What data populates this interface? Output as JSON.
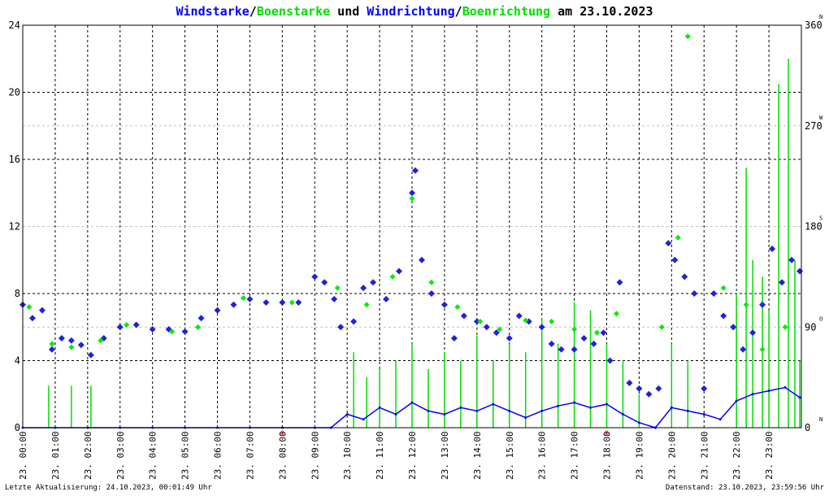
{
  "title": {
    "part1": "Windstarke",
    "sep1": "/",
    "part2": "Boenstarke",
    "part3": " und ",
    "part4": "Windrichtung",
    "sep2": "/",
    "part5": "Boenrichtung",
    "part6": " am 23.10.2023"
  },
  "footer": {
    "left": "Letzte Aktualisierung: 24.10.2023, 00:01:49 Uhr",
    "right": "Datenstand: 23.10.2023, 23:59:56 Uhr"
  },
  "colors": {
    "wind": "#0000ff",
    "gust": "#00dd00",
    "direction": "#2020e0",
    "gust_direction": "#00ee00",
    "marker": "#ff0000",
    "grid": "#000000",
    "text": "#000000"
  },
  "chart_data": {
    "type": "scatter",
    "xlim": [
      0,
      24
    ],
    "ylim": [
      0,
      24
    ],
    "y2lim": [
      0,
      360
    ],
    "yticks": [
      "0",
      "4",
      "8",
      "12",
      "16",
      "20",
      "24"
    ],
    "y2ticks": [
      {
        "value": "0",
        "dir": "N"
      },
      {
        "value": "90",
        "dir": "O"
      },
      {
        "value": "180",
        "dir": "S"
      },
      {
        "value": "270",
        "dir": "W"
      },
      {
        "value": "360",
        "dir": "N"
      }
    ],
    "xticks": [
      "23. 00:00",
      "23. 01:00",
      "23. 02:00",
      "23. 03:00",
      "23. 04:00",
      "23. 05:00",
      "23. 06:00",
      "23. 07:00",
      "23. 08:00",
      "23. 09:00",
      "23. 10:00",
      "23. 11:00",
      "23. 12:00",
      "23. 13:00",
      "23. 14:00",
      "23. 15:00",
      "23. 16:00",
      "23. 17:00",
      "23. 18:00",
      "23. 19:00",
      "23. 20:00",
      "23. 21:00",
      "23. 22:00",
      "23. 23:00"
    ],
    "red_markers": [
      {
        "x": 8.0,
        "label": "0"
      },
      {
        "x": 18.0,
        "label": "0"
      }
    ],
    "series": [
      {
        "name": "Windrichtung",
        "role": "direction",
        "axis": "right",
        "x": [
          0.0,
          0.3,
          0.6,
          0.9,
          1.2,
          1.5,
          1.8,
          2.1,
          2.5,
          3.0,
          3.5,
          4.0,
          4.5,
          5.0,
          5.5,
          6.0,
          6.5,
          7.0,
          7.5,
          8.0,
          8.5,
          9.0,
          9.3,
          9.6,
          9.8,
          10.2,
          10.5,
          10.8,
          11.2,
          11.6,
          12.0,
          12.1,
          12.3,
          12.6,
          13.0,
          13.3,
          13.6,
          14.0,
          14.3,
          14.6,
          15.0,
          15.3,
          15.6,
          16.0,
          16.3,
          16.6,
          17.0,
          17.3,
          17.6,
          17.9,
          18.1,
          18.4,
          18.7,
          19.0,
          19.3,
          19.6,
          19.9,
          20.1,
          20.4,
          20.7,
          21.0,
          21.3,
          21.6,
          21.9,
          22.2,
          22.5,
          22.8,
          23.1,
          23.4,
          23.7,
          23.95
        ],
        "values": [
          110,
          98,
          105,
          70,
          80,
          78,
          74,
          65,
          80,
          90,
          92,
          88,
          88,
          86,
          98,
          105,
          110,
          115,
          112,
          112,
          112,
          135,
          130,
          115,
          90,
          95,
          125,
          130,
          115,
          140,
          210,
          230,
          150,
          120,
          110,
          80,
          100,
          95,
          90,
          85,
          80,
          100,
          95,
          90,
          75,
          70,
          70,
          80,
          75,
          85,
          60,
          130,
          40,
          35,
          30,
          35,
          165,
          150,
          135,
          120,
          35,
          120,
          100,
          90,
          70,
          85,
          110,
          160,
          130,
          150,
          140
        ]
      },
      {
        "name": "Boenrichtung",
        "role": "gust_direction",
        "axis": "right",
        "x": [
          0.2,
          0.9,
          1.5,
          2.4,
          3.2,
          4.6,
          5.4,
          6.8,
          8.3,
          9.7,
          10.6,
          11.4,
          12.0,
          12.6,
          13.4,
          14.1,
          14.7,
          15.5,
          16.3,
          17.0,
          17.7,
          18.3,
          19.7,
          20.2,
          20.5,
          21.6,
          22.3,
          22.8,
          23.5
        ],
        "values": [
          108,
          75,
          72,
          78,
          92,
          86,
          90,
          116,
          112,
          125,
          110,
          135,
          205,
          130,
          108,
          95,
          88,
          96,
          95,
          88,
          85,
          102,
          90,
          170,
          350,
          125,
          110,
          70,
          90
        ]
      },
      {
        "name": "Windstarke",
        "role": "wind",
        "axis": "left",
        "x": [
          0.0,
          1.0,
          2.0,
          3.0,
          4.0,
          5.0,
          6.0,
          7.0,
          8.0,
          9.0,
          9.5,
          10.0,
          10.5,
          11.0,
          11.5,
          12.0,
          12.5,
          13.0,
          13.5,
          14.0,
          14.5,
          15.0,
          15.5,
          16.0,
          16.5,
          17.0,
          17.5,
          18.0,
          18.5,
          19.0,
          19.5,
          20.0,
          20.5,
          21.0,
          21.5,
          22.0,
          22.5,
          23.0,
          23.5,
          23.95
        ],
        "values": [
          0,
          0,
          0,
          0,
          0,
          0,
          0,
          0,
          0,
          0,
          0,
          0.8,
          0.5,
          1.2,
          0.8,
          1.5,
          1.0,
          0.8,
          1.2,
          1.0,
          1.4,
          1.0,
          0.6,
          1.0,
          1.3,
          1.5,
          1.2,
          1.4,
          0.8,
          0.3,
          0,
          1.2,
          1.0,
          0.8,
          0.5,
          1.6,
          2.0,
          2.2,
          2.4,
          1.8
        ]
      },
      {
        "name": "Boenstarke",
        "role": "gust",
        "axis": "left",
        "x": [
          0.0,
          0.8,
          1.0,
          1.5,
          2.1,
          2.2,
          3.0,
          9.0,
          9.8,
          10.2,
          10.6,
          11.0,
          11.5,
          12.0,
          12.5,
          13.0,
          13.5,
          14.0,
          14.5,
          15.0,
          15.5,
          16.0,
          16.5,
          17.0,
          17.5,
          18.0,
          18.5,
          19.0,
          19.5,
          20.0,
          20.5,
          21.0,
          21.5,
          22.0,
          22.3,
          22.5,
          22.8,
          23.0,
          23.3,
          23.6,
          23.8,
          23.95
        ],
        "values": [
          0,
          2.5,
          0,
          2.5,
          2.5,
          0,
          0,
          0,
          0,
          4.5,
          3.0,
          3.5,
          4.0,
          5.0,
          3.5,
          4.5,
          4.0,
          5.5,
          4.0,
          5.0,
          4.5,
          6.5,
          5.0,
          7.5,
          7.0,
          5.0,
          4.0,
          2.0,
          0,
          5.0,
          4.0,
          0,
          0,
          8.0,
          15.5,
          10.0,
          9.0,
          7.0,
          20.5,
          22.0,
          10.0,
          4.0
        ]
      }
    ]
  }
}
